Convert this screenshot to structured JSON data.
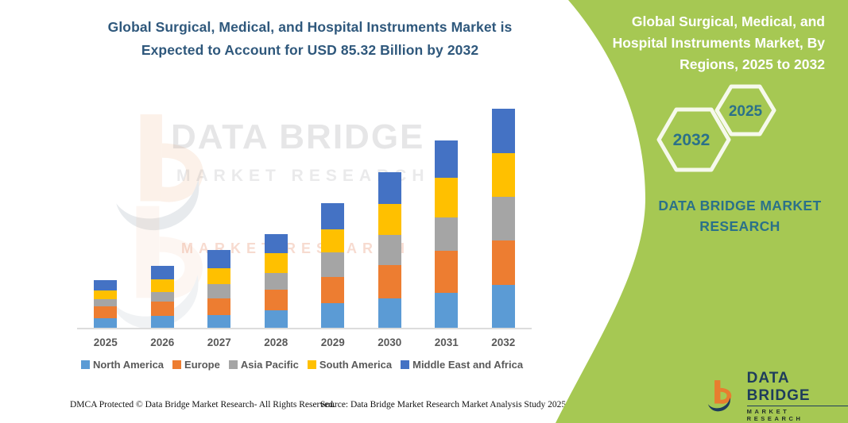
{
  "header": {
    "title_line1": "Global Surgical, Medical, and Hospital Instruments Market is",
    "title_line2": "Expected to Account for USD 85.32 Billion by 2032"
  },
  "side_panel": {
    "title": "Global Surgical, Medical, and Hospital Instruments Market, By Regions, 2025 to 2032",
    "hexagons": [
      "2032",
      "2025"
    ],
    "brand_text": "DATA BRIDGE MARKET RESEARCH",
    "logo": {
      "name": "DATA BRIDGE",
      "subtitle": "MARKET RESEARCH"
    }
  },
  "watermark": {
    "line1": "DATA BRIDGE",
    "line2": "MARKET RESEARCH",
    "line3": "MARKET RESEARCH"
  },
  "footer": {
    "left": "DMCA Protected © Data Bridge Market Research-  All Rights Reserved.",
    "right": "Source: Data Bridge Market Research  Market Analysis Study 2025"
  },
  "colors": {
    "panel_green": "#a6c853",
    "teal_accent": "#2b7189",
    "title_blue": "#2f587c",
    "axis_text": "#595959",
    "logo_orange": "#e87d2f",
    "logo_navy": "#1e3c5c"
  },
  "chart_data": {
    "type": "bar",
    "stacked": true,
    "title": "Global Surgical, Medical, and Hospital Instruments Market is Expected to Account for USD 85.32 Billion by 2032",
    "unit": "USD Billion (estimated from bar heights; 2032 total = 85.32)",
    "categories": [
      "2025",
      "2026",
      "2027",
      "2028",
      "2029",
      "2030",
      "2031",
      "2032"
    ],
    "series": [
      {
        "name": "North America",
        "color": "#5b9bd5",
        "values": [
          3.8,
          4.5,
          4.9,
          6.7,
          9.5,
          11.5,
          13.7,
          16.7
        ]
      },
      {
        "name": "Europe",
        "color": "#ed7d31",
        "values": [
          4.6,
          5.7,
          6.4,
          8.2,
          10.3,
          13.0,
          16.3,
          17.3
        ]
      },
      {
        "name": "Asia Pacific",
        "color": "#a5a5a5",
        "values": [
          2.6,
          3.6,
          5.8,
          6.4,
          9.6,
          11.8,
          13.1,
          17.0
        ]
      },
      {
        "name": "South America",
        "color": "#ffc000",
        "values": [
          3.4,
          5.2,
          6.2,
          7.8,
          9.0,
          11.8,
          15.2,
          16.9
        ]
      },
      {
        "name": "Middle East and Africa",
        "color": "#4472c4",
        "values": [
          4.1,
          5.3,
          6.9,
          7.4,
          10.3,
          12.4,
          14.8,
          17.4
        ]
      }
    ],
    "totals_estimated": [
      18.5,
      24.3,
      30.2,
      36.5,
      48.7,
      60.5,
      73.1,
      85.3
    ],
    "xlabel": "",
    "ylabel": "",
    "ylim": [
      0,
      90
    ],
    "grid": false,
    "y_axis_visible": false,
    "legend_position": "bottom"
  }
}
